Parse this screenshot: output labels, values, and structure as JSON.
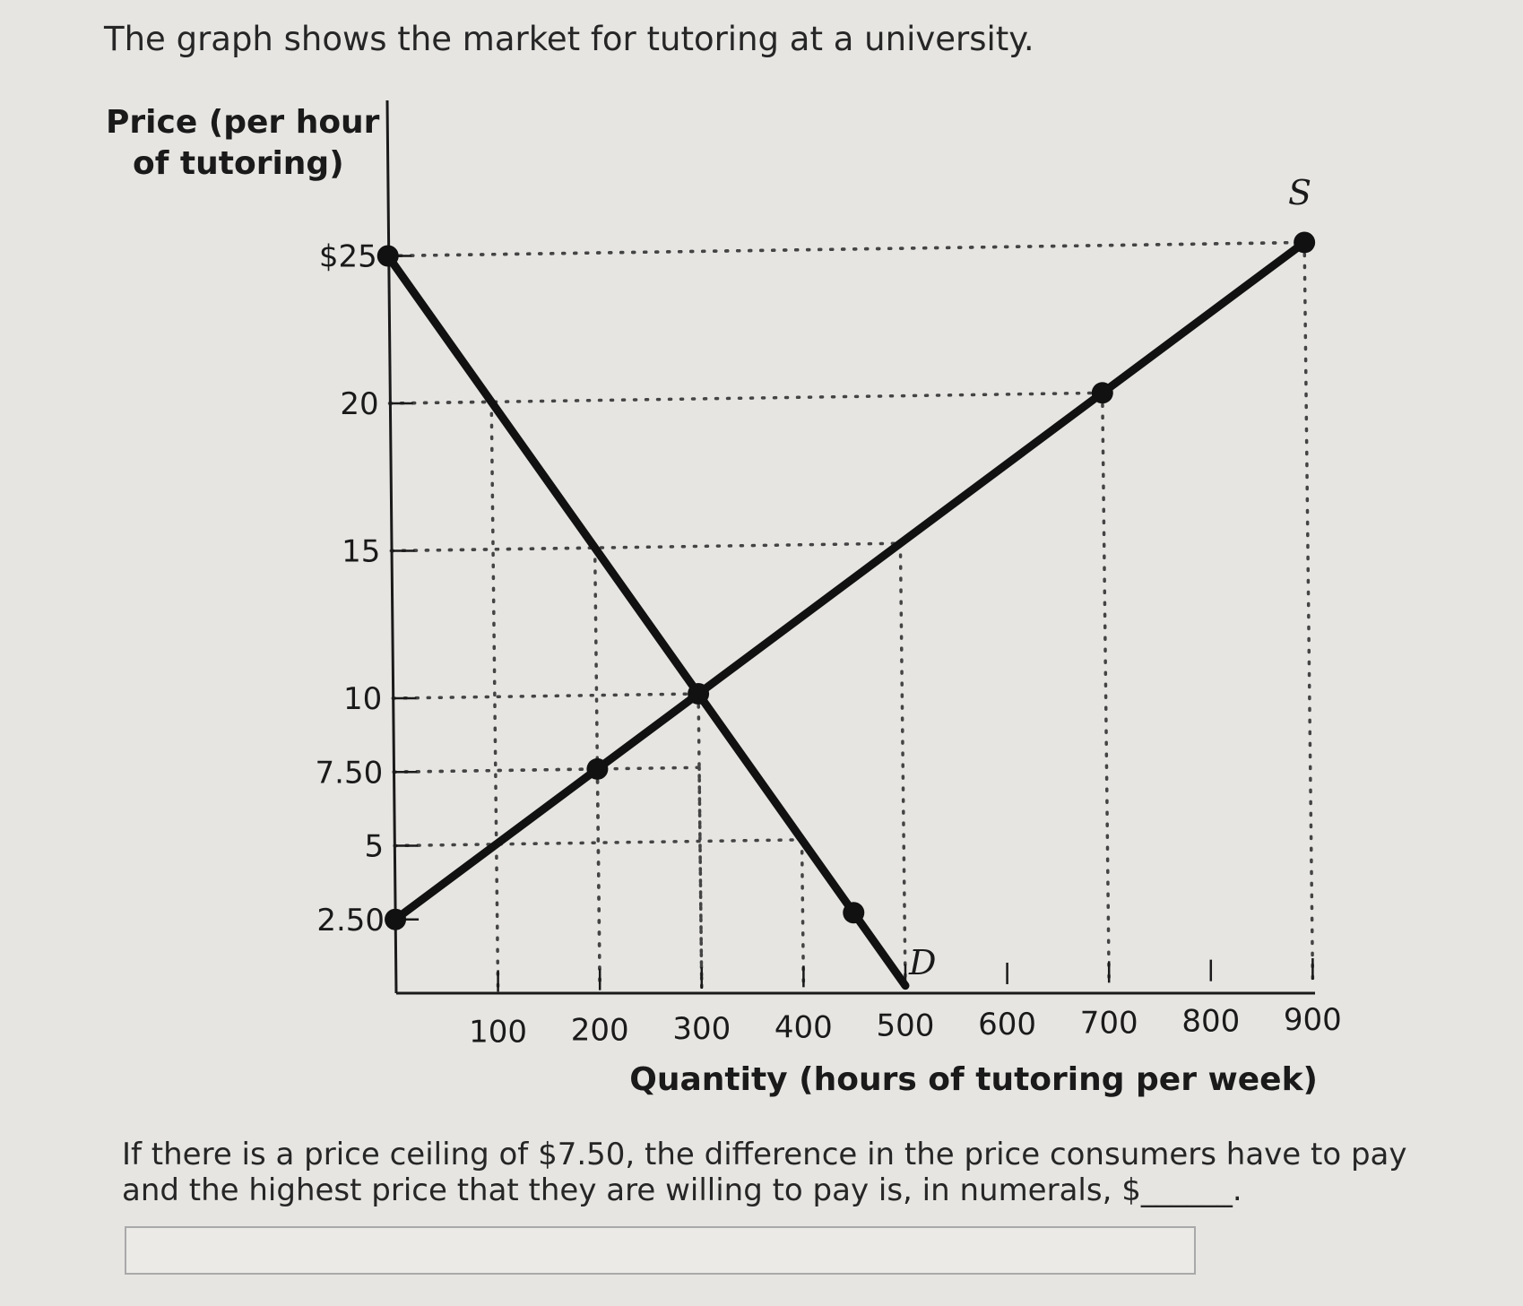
{
  "intro_text": "The graph shows the market for tutoring at a university.",
  "question": {
    "text_before": "If there is a price ceiling of $7.50, the difference in the price consumers have to pay and the highest price that they are willing to pay is, in numerals, $",
    "blank": "______",
    "text_after": "."
  },
  "answer": {
    "value": ""
  },
  "chart_data": {
    "type": "line",
    "ylabel_line1": "Price (per hour",
    "ylabel_line2": "of tutoring)",
    "xlabel": "Quantity (hours of tutoring per week)",
    "xlim": [
      0,
      900
    ],
    "ylim": [
      0,
      27
    ],
    "x_ticks": [
      100,
      200,
      300,
      400,
      500,
      600,
      700,
      800,
      900
    ],
    "x_tick_labels": [
      "100",
      "200",
      "300",
      "400",
      "500",
      "600",
      "700",
      "800",
      "900"
    ],
    "y_ticks": [
      2.5,
      5,
      7.5,
      10,
      15,
      20,
      25
    ],
    "y_tick_labels": [
      "2.50",
      "5",
      "7.50",
      "10",
      "15",
      "20",
      "$25"
    ],
    "series": [
      {
        "name": "D",
        "points": [
          [
            0,
            25
          ],
          [
            100,
            20
          ],
          [
            200,
            15
          ],
          [
            300,
            10
          ],
          [
            400,
            5
          ],
          [
            450,
            2.5
          ],
          [
            500,
            0
          ]
        ],
        "dots": [
          [
            0,
            25
          ],
          [
            450,
            2.5
          ]
        ]
      },
      {
        "name": "S",
        "points": [
          [
            0,
            2.5
          ],
          [
            200,
            7.5
          ],
          [
            300,
            10
          ],
          [
            700,
            20
          ],
          [
            900,
            25
          ]
        ],
        "dots": [
          [
            0,
            2.5
          ],
          [
            200,
            7.5
          ],
          [
            300,
            10
          ],
          [
            700,
            20
          ],
          [
            900,
            25
          ]
        ]
      }
    ],
    "guides": [
      {
        "x": 100,
        "y": 20
      },
      {
        "x": 200,
        "y": 15
      },
      {
        "x": 300,
        "y": 10
      },
      {
        "x": 200,
        "y": 7.5
      },
      {
        "x": 400,
        "y": 5
      },
      {
        "x": 500,
        "y": 15
      },
      {
        "x": 700,
        "y": 20
      },
      {
        "x": 900,
        "y": 25
      },
      {
        "x": 300,
        "y": 7.5
      }
    ],
    "grid": false,
    "colors": {
      "curve": "#111111",
      "guide": "#444444"
    }
  }
}
